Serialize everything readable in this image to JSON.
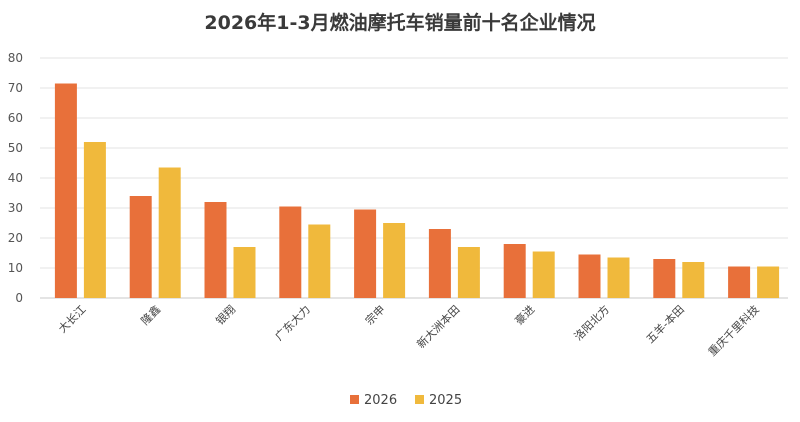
{
  "chart_data": {
    "type": "bar",
    "title": "2026年1-3月燃油摩托车销量前十名企业情况",
    "categories": [
      "大长江",
      "隆鑫",
      "银翔",
      "广东大力",
      "宗申",
      "新大洲本田",
      "豪进",
      "洛阳北方",
      "五羊-本田",
      "重庆千里科技"
    ],
    "series": [
      {
        "name": "2026",
        "values": [
          71.5,
          34,
          32,
          30.5,
          29.5,
          23,
          18,
          14.5,
          13,
          10.5
        ],
        "color": "#e8703a"
      },
      {
        "name": "2025",
        "values": [
          52,
          43.5,
          17,
          24.5,
          25,
          17,
          15.5,
          13.5,
          12,
          10.5
        ],
        "color": "#f0b93c"
      }
    ],
    "ylim": [
      0,
      80
    ],
    "yticks": [
      0,
      10,
      20,
      30,
      40,
      50,
      60,
      70,
      80
    ],
    "grid": true,
    "legend_position": "bottom-center",
    "xlabel": "",
    "ylabel": ""
  }
}
